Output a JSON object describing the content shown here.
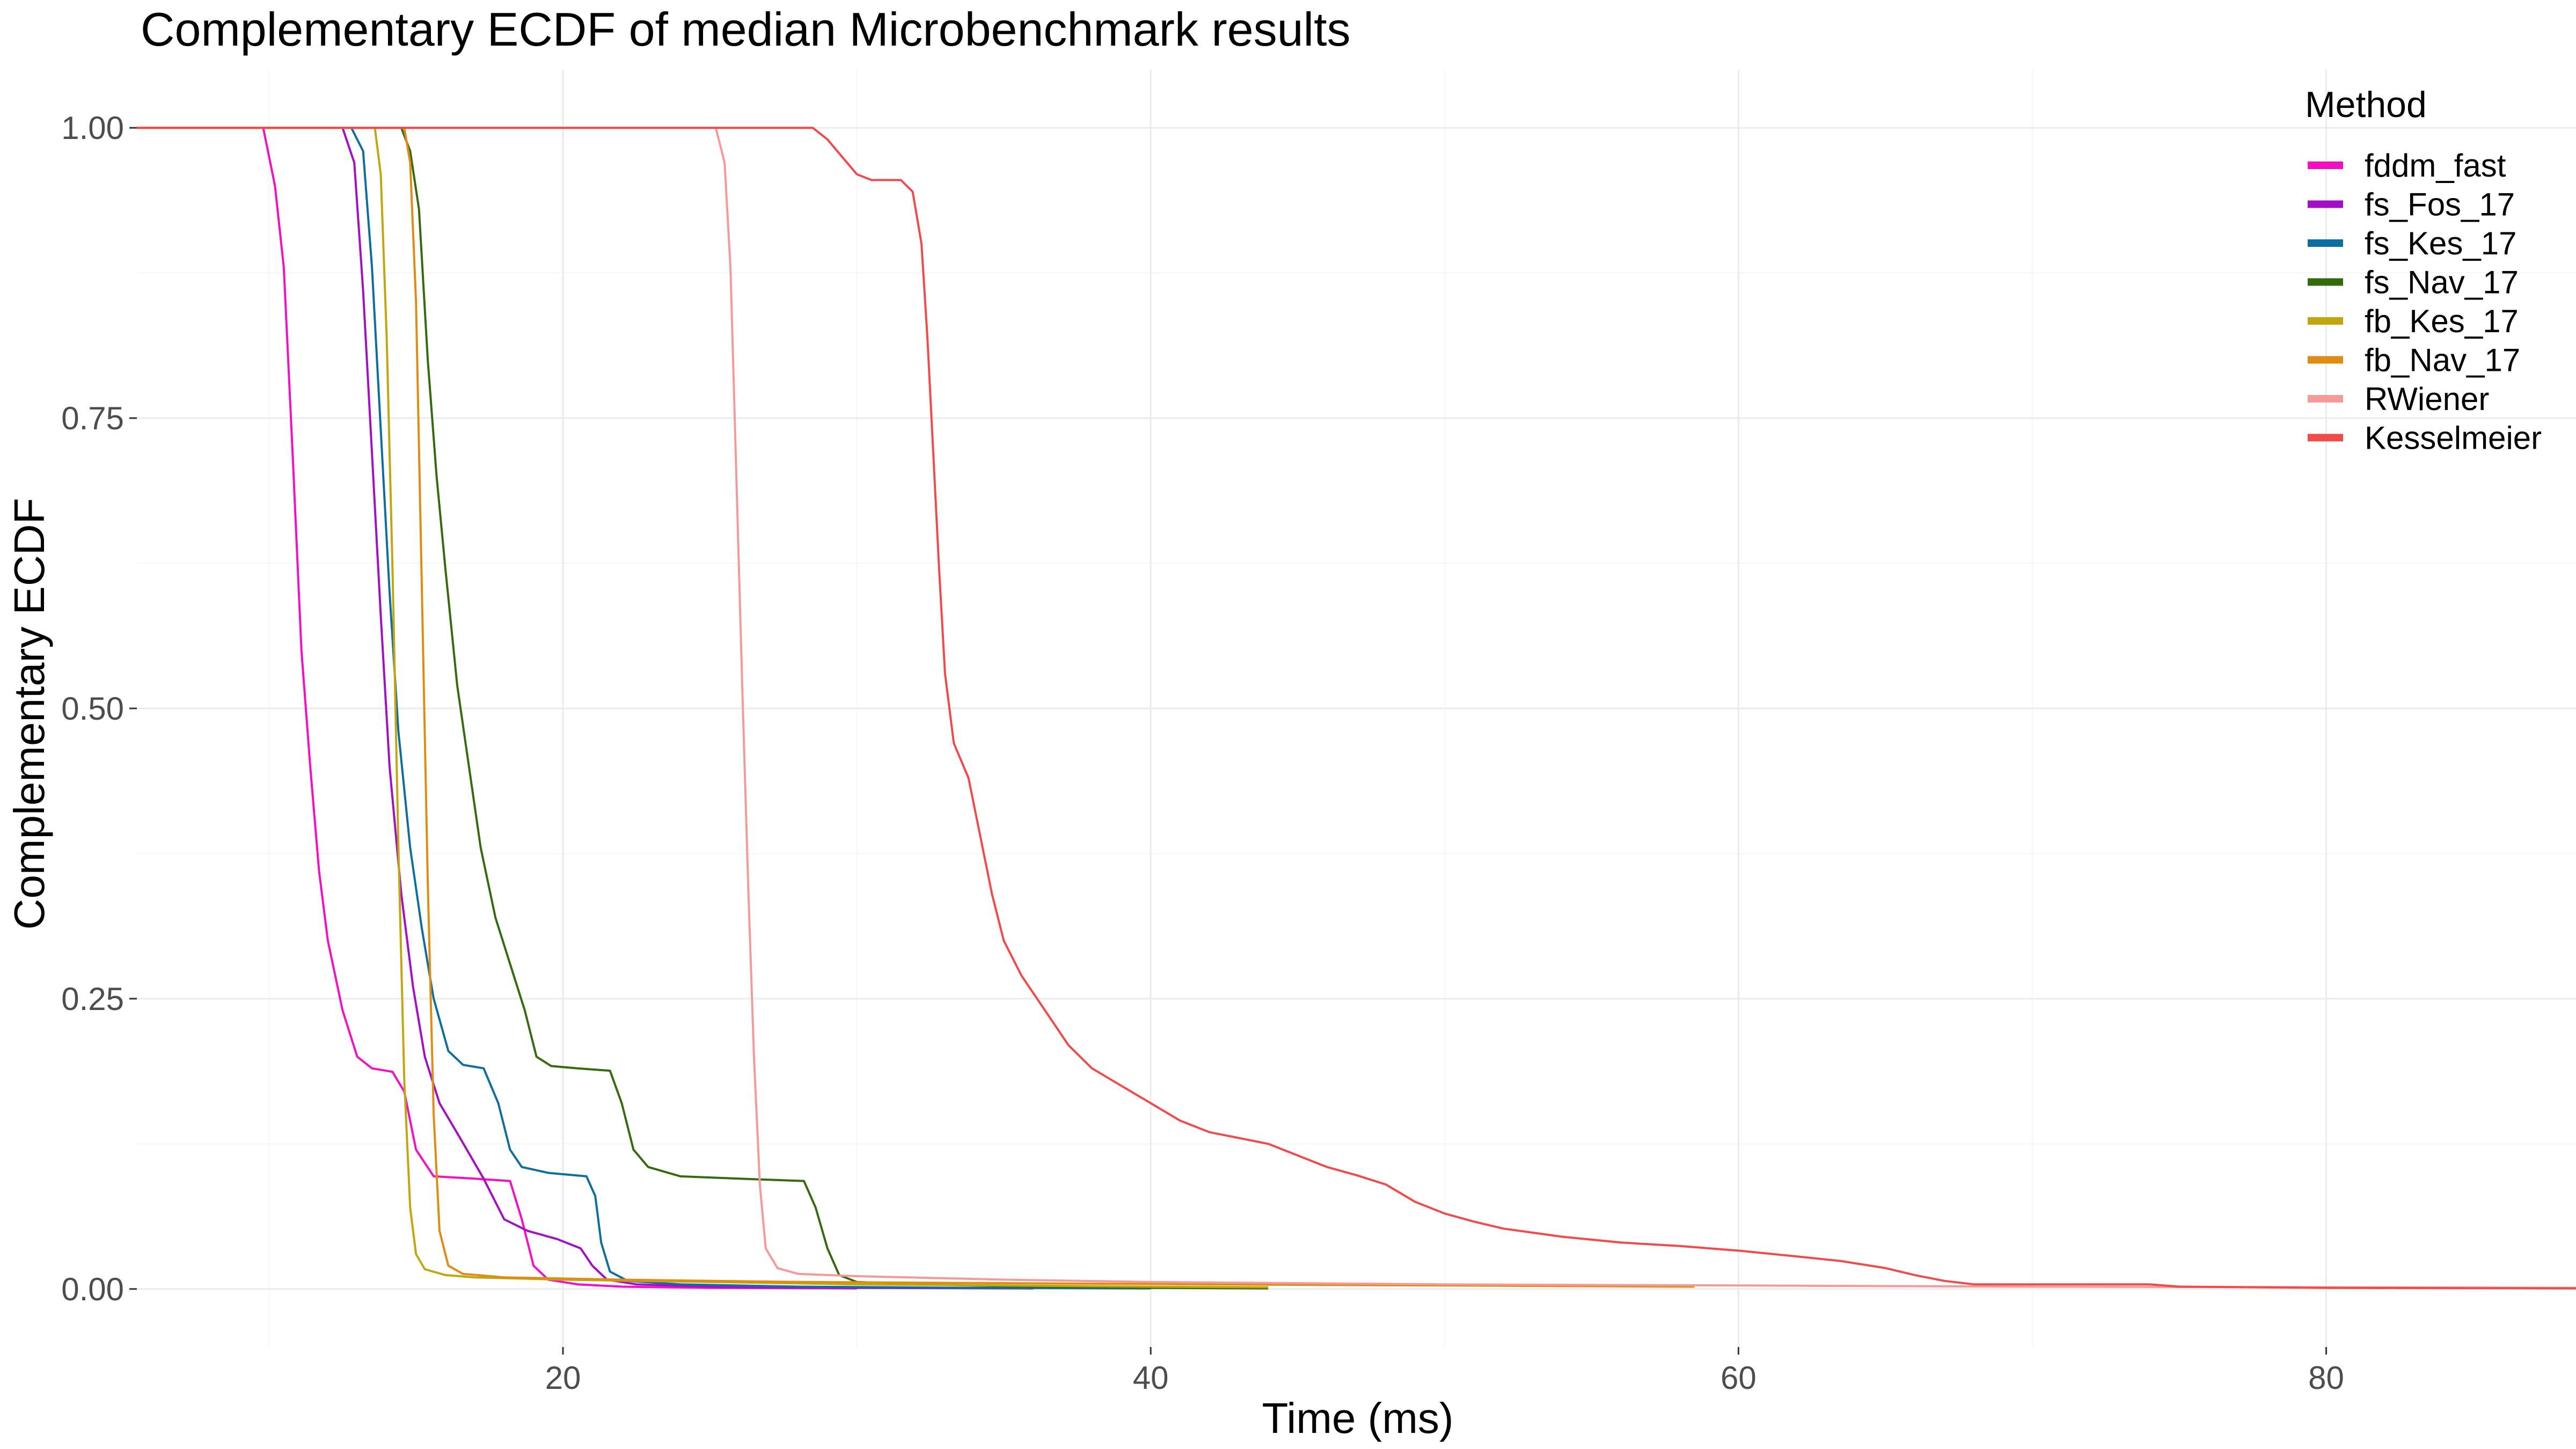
{
  "chart_data": {
    "type": "line",
    "title": "Complementary ECDF of median Microbenchmark results",
    "xlabel": "Time (ms)",
    "ylabel": "Complementary ECDF",
    "xlim": [
      5.5,
      88.5
    ],
    "ylim": [
      -0.05,
      1.05
    ],
    "x_ticks": [
      20,
      40,
      60,
      80
    ],
    "x_tick_labels": [
      "20",
      "40",
      "60",
      "80"
    ],
    "y_ticks": [
      0,
      0.25,
      0.5,
      0.75,
      1.0
    ],
    "y_tick_labels": [
      "0.00",
      "0.25",
      "0.50",
      "0.75",
      "1.00"
    ],
    "grid": true,
    "legend": {
      "title": "Method",
      "position": "top-right"
    },
    "series": [
      {
        "name": "fddm_fast",
        "color": "#f20fc4",
        "points": [
          [
            5.5,
            1.0
          ],
          [
            9.8,
            1.0
          ],
          [
            10.2,
            0.95
          ],
          [
            10.5,
            0.88
          ],
          [
            10.8,
            0.72
          ],
          [
            11.1,
            0.55
          ],
          [
            11.4,
            0.45
          ],
          [
            11.7,
            0.36
          ],
          [
            12.0,
            0.3
          ],
          [
            12.5,
            0.24
          ],
          [
            13.0,
            0.2
          ],
          [
            13.5,
            0.19
          ],
          [
            14.2,
            0.187
          ],
          [
            14.6,
            0.17
          ],
          [
            15.0,
            0.12
          ],
          [
            15.6,
            0.097
          ],
          [
            17.0,
            0.095
          ],
          [
            18.2,
            0.093
          ],
          [
            18.6,
            0.06
          ],
          [
            19.0,
            0.02
          ],
          [
            19.5,
            0.008
          ],
          [
            20.5,
            0.004
          ],
          [
            22.0,
            0.002
          ],
          [
            25.0,
            0.001
          ],
          [
            30.0,
            0.0005
          ]
        ]
      },
      {
        "name": "fs_Fos_17",
        "color": "#a20fc4",
        "points": [
          [
            5.5,
            1.0
          ],
          [
            12.5,
            1.0
          ],
          [
            12.9,
            0.97
          ],
          [
            13.2,
            0.86
          ],
          [
            13.5,
            0.72
          ],
          [
            13.8,
            0.58
          ],
          [
            14.1,
            0.45
          ],
          [
            14.5,
            0.34
          ],
          [
            14.9,
            0.26
          ],
          [
            15.3,
            0.2
          ],
          [
            15.8,
            0.16
          ],
          [
            16.5,
            0.13
          ],
          [
            17.3,
            0.095
          ],
          [
            18.0,
            0.06
          ],
          [
            18.8,
            0.05
          ],
          [
            19.8,
            0.043
          ],
          [
            20.6,
            0.035
          ],
          [
            21.0,
            0.02
          ],
          [
            21.5,
            0.008
          ],
          [
            22.5,
            0.004
          ],
          [
            25.0,
            0.002
          ],
          [
            30.0,
            0.001
          ],
          [
            36.0,
            0.0005
          ]
        ]
      },
      {
        "name": "fs_Kes_17",
        "color": "#0e6ea0",
        "points": [
          [
            5.5,
            1.0
          ],
          [
            12.8,
            1.0
          ],
          [
            13.2,
            0.98
          ],
          [
            13.5,
            0.88
          ],
          [
            13.8,
            0.74
          ],
          [
            14.1,
            0.6
          ],
          [
            14.4,
            0.48
          ],
          [
            14.8,
            0.38
          ],
          [
            15.2,
            0.31
          ],
          [
            15.6,
            0.25
          ],
          [
            16.1,
            0.205
          ],
          [
            16.6,
            0.193
          ],
          [
            17.3,
            0.19
          ],
          [
            17.8,
            0.16
          ],
          [
            18.2,
            0.12
          ],
          [
            18.6,
            0.105
          ],
          [
            19.5,
            0.1
          ],
          [
            20.8,
            0.097
          ],
          [
            21.1,
            0.08
          ],
          [
            21.3,
            0.04
          ],
          [
            21.6,
            0.015
          ],
          [
            22.2,
            0.007
          ],
          [
            24.0,
            0.004
          ],
          [
            28.0,
            0.002
          ],
          [
            34.0,
            0.001
          ],
          [
            40.0,
            0.0005
          ]
        ]
      },
      {
        "name": "fs_Nav_17",
        "color": "#356a0e",
        "points": [
          [
            5.5,
            1.0
          ],
          [
            14.5,
            1.0
          ],
          [
            14.8,
            0.98
          ],
          [
            15.1,
            0.93
          ],
          [
            15.4,
            0.8
          ],
          [
            15.7,
            0.7
          ],
          [
            16.0,
            0.62
          ],
          [
            16.4,
            0.52
          ],
          [
            16.8,
            0.45
          ],
          [
            17.2,
            0.38
          ],
          [
            17.7,
            0.32
          ],
          [
            18.2,
            0.28
          ],
          [
            18.7,
            0.24
          ],
          [
            19.1,
            0.2
          ],
          [
            19.6,
            0.192
          ],
          [
            20.5,
            0.19
          ],
          [
            21.6,
            0.188
          ],
          [
            22.0,
            0.16
          ],
          [
            22.4,
            0.12
          ],
          [
            22.9,
            0.105
          ],
          [
            24.0,
            0.097
          ],
          [
            26.0,
            0.095
          ],
          [
            28.2,
            0.093
          ],
          [
            28.6,
            0.07
          ],
          [
            29.0,
            0.035
          ],
          [
            29.4,
            0.012
          ],
          [
            30.0,
            0.006
          ],
          [
            32.0,
            0.004
          ],
          [
            36.0,
            0.002
          ],
          [
            40.0,
            0.001
          ],
          [
            44.0,
            0.0005
          ]
        ]
      },
      {
        "name": "fb_Kes_17",
        "color": "#c2a60f",
        "points": [
          [
            5.5,
            1.0
          ],
          [
            13.6,
            1.0
          ],
          [
            13.8,
            0.96
          ],
          [
            14.0,
            0.82
          ],
          [
            14.2,
            0.62
          ],
          [
            14.4,
            0.38
          ],
          [
            14.6,
            0.18
          ],
          [
            14.8,
            0.07
          ],
          [
            15.0,
            0.03
          ],
          [
            15.3,
            0.017
          ],
          [
            16.0,
            0.012
          ],
          [
            17.0,
            0.01
          ],
          [
            20.0,
            0.008
          ],
          [
            25.0,
            0.006
          ],
          [
            30.0,
            0.004
          ],
          [
            35.0,
            0.003
          ],
          [
            40.0,
            0.002
          ],
          [
            44.0,
            0.0015
          ]
        ]
      },
      {
        "name": "fb_Nav_17",
        "color": "#e08b14",
        "points": [
          [
            5.5,
            1.0
          ],
          [
            14.6,
            1.0
          ],
          [
            14.8,
            0.97
          ],
          [
            15.0,
            0.85
          ],
          [
            15.2,
            0.6
          ],
          [
            15.4,
            0.35
          ],
          [
            15.6,
            0.15
          ],
          [
            15.8,
            0.05
          ],
          [
            16.1,
            0.02
          ],
          [
            16.6,
            0.013
          ],
          [
            18.0,
            0.01
          ],
          [
            22.0,
            0.008
          ],
          [
            28.0,
            0.006
          ],
          [
            35.0,
            0.005
          ],
          [
            42.0,
            0.004
          ],
          [
            50.0,
            0.003
          ],
          [
            58.5,
            0.002
          ]
        ]
      },
      {
        "name": "RWiener",
        "color": "#f49a98",
        "points": [
          [
            5.5,
            1.0
          ],
          [
            25.2,
            1.0
          ],
          [
            25.5,
            0.97
          ],
          [
            25.7,
            0.88
          ],
          [
            25.9,
            0.7
          ],
          [
            26.1,
            0.52
          ],
          [
            26.3,
            0.35
          ],
          [
            26.5,
            0.2
          ],
          [
            26.7,
            0.09
          ],
          [
            26.9,
            0.035
          ],
          [
            27.3,
            0.018
          ],
          [
            28.0,
            0.013
          ],
          [
            30.0,
            0.011
          ],
          [
            35.0,
            0.008
          ],
          [
            40.0,
            0.006
          ],
          [
            50.0,
            0.004
          ],
          [
            60.0,
            0.003
          ],
          [
            70.0,
            0.002
          ],
          [
            80.0,
            0.0015
          ],
          [
            88.5,
            0.001
          ]
        ]
      },
      {
        "name": "Kesselmeier",
        "color": "#f04a4a",
        "points": [
          [
            5.5,
            1.0
          ],
          [
            28.5,
            1.0
          ],
          [
            29.0,
            0.99
          ],
          [
            29.5,
            0.975
          ],
          [
            30.0,
            0.96
          ],
          [
            30.5,
            0.955
          ],
          [
            31.5,
            0.955
          ],
          [
            31.9,
            0.945
          ],
          [
            32.2,
            0.9
          ],
          [
            32.4,
            0.82
          ],
          [
            32.6,
            0.72
          ],
          [
            32.8,
            0.62
          ],
          [
            33.0,
            0.53
          ],
          [
            33.3,
            0.47
          ],
          [
            33.8,
            0.44
          ],
          [
            34.2,
            0.39
          ],
          [
            34.6,
            0.34
          ],
          [
            35.0,
            0.3
          ],
          [
            35.6,
            0.27
          ],
          [
            36.4,
            0.24
          ],
          [
            37.2,
            0.21
          ],
          [
            38.0,
            0.19
          ],
          [
            39.0,
            0.175
          ],
          [
            40.0,
            0.16
          ],
          [
            41.0,
            0.145
          ],
          [
            42.0,
            0.135
          ],
          [
            43.0,
            0.13
          ],
          [
            44.0,
            0.125
          ],
          [
            45.0,
            0.115
          ],
          [
            46.0,
            0.105
          ],
          [
            47.0,
            0.098
          ],
          [
            48.0,
            0.09
          ],
          [
            49.0,
            0.075
          ],
          [
            50.0,
            0.065
          ],
          [
            51.0,
            0.058
          ],
          [
            52.0,
            0.052
          ],
          [
            54.0,
            0.045
          ],
          [
            56.0,
            0.04
          ],
          [
            58.0,
            0.037
          ],
          [
            60.0,
            0.033
          ],
          [
            62.0,
            0.028
          ],
          [
            63.5,
            0.024
          ],
          [
            65.0,
            0.018
          ],
          [
            66.0,
            0.012
          ],
          [
            67.0,
            0.007
          ],
          [
            68.0,
            0.004
          ],
          [
            70.0,
            0.004
          ],
          [
            74.0,
            0.004
          ],
          [
            75.0,
            0.002
          ],
          [
            80.0,
            0.001
          ],
          [
            88.5,
            0.0005
          ]
        ]
      }
    ]
  }
}
